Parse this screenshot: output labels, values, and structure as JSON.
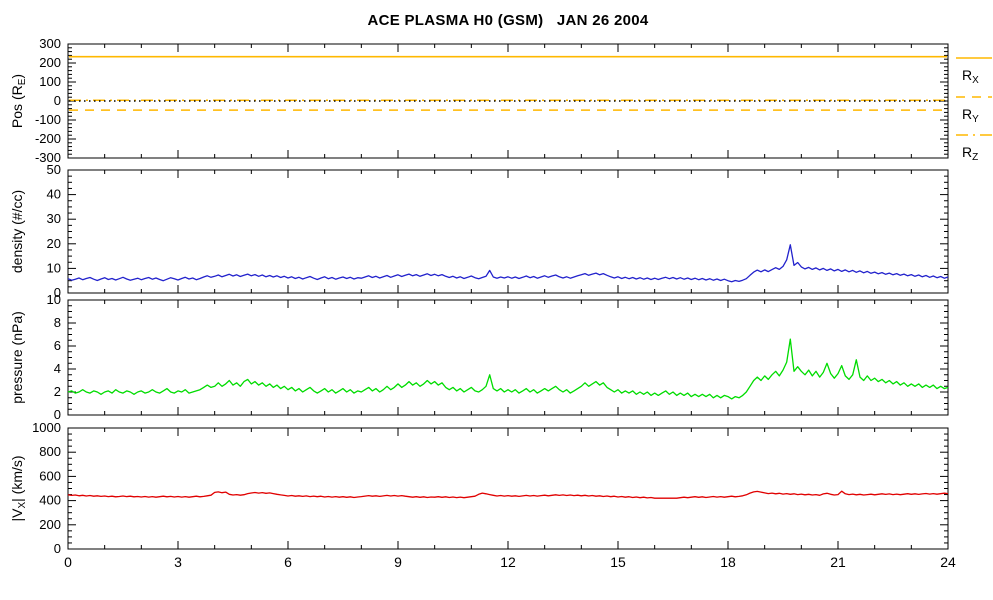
{
  "title": "ACE PLASMA H0 (GSM)   JAN 26 2004",
  "colors": {
    "position_lines": "#FFB800",
    "density_trace": "#2222CC",
    "pressure_trace": "#00DC00",
    "velocity_trace": "#E00000",
    "zero_reference": "#000000",
    "axis": "#000000",
    "background": "#FFFFFF"
  },
  "x_axis": {
    "min": 0,
    "max": 24,
    "major_ticks": [
      0,
      3,
      6,
      9,
      12,
      15,
      18,
      21,
      24
    ],
    "minor_step": 1
  },
  "chart_data": [
    {
      "type": "line",
      "panel": "position",
      "ylabel": {
        "pre": "Pos (R",
        "sub": "E",
        "post": ")"
      },
      "ylim": [
        -300,
        300
      ],
      "yticks": [
        -300,
        -200,
        -100,
        0,
        100,
        200,
        300
      ],
      "minor_step": 20,
      "legend_position": "right-outside",
      "series": [
        {
          "name": "RX",
          "legend": {
            "pre": "R",
            "sub": "X"
          },
          "style": "solid",
          "color": "#FFB800",
          "value": 233
        },
        {
          "name": "RY",
          "legend": {
            "pre": "R",
            "sub": "Y"
          },
          "style": "dashed",
          "color": "#FFB800",
          "value": -48
        },
        {
          "name": "RZ",
          "legend": {
            "pre": "R",
            "sub": "Z"
          },
          "style": "dashdot",
          "color": "#FFB800",
          "value": 4
        },
        {
          "name": "zero-reference",
          "style": "dotted",
          "color": "#000000",
          "value": 0
        }
      ]
    },
    {
      "type": "line",
      "panel": "density",
      "ylabel": {
        "pre": "density (#/cc)"
      },
      "ylim": [
        0,
        50
      ],
      "yticks": [
        0,
        10,
        20,
        30,
        40,
        50
      ],
      "minor_step": 2.5,
      "x_start": 0,
      "x_step": 0.1,
      "series": [
        {
          "name": "proton-density",
          "style": "solid",
          "color": "#2222CC",
          "values": [
            5.8,
            5.2,
            5.6,
            6.1,
            5.4,
            5.9,
            6.3,
            5.6,
            5.1,
            5.7,
            6.2,
            5.5,
            5.9,
            5.3,
            5.8,
            6.4,
            5.7,
            5.2,
            5.6,
            6.0,
            5.4,
            5.9,
            6.3,
            5.6,
            6.1,
            5.5,
            5.0,
            5.6,
            6.2,
            5.8,
            5.3,
            5.9,
            6.4,
            5.7,
            6.1,
            5.4,
            5.9,
            6.5,
            7.0,
            6.4,
            6.8,
            7.3,
            6.6,
            7.1,
            7.6,
            6.9,
            7.4,
            6.7,
            7.2,
            7.7,
            7.0,
            7.5,
            6.8,
            7.3,
            6.6,
            7.1,
            6.5,
            7.0,
            6.3,
            6.8,
            6.1,
            6.6,
            5.9,
            6.4,
            5.7,
            6.2,
            6.7,
            6.0,
            5.5,
            6.1,
            6.6,
            5.8,
            6.3,
            5.6,
            6.1,
            6.5,
            5.9,
            6.4,
            5.7,
            6.2,
            6.0,
            6.5,
            7.0,
            6.3,
            6.8,
            6.1,
            6.6,
            7.1,
            6.4,
            6.9,
            7.4,
            6.7,
            7.2,
            7.7,
            7.0,
            7.5,
            6.8,
            7.3,
            7.8,
            7.1,
            7.6,
            7.0,
            7.5,
            6.8,
            6.3,
            6.8,
            6.1,
            6.6,
            5.9,
            6.4,
            6.9,
            6.2,
            5.8,
            6.3,
            6.8,
            9.2,
            6.5,
            6.0,
            6.5,
            6.1,
            6.6,
            6.0,
            6.5,
            5.9,
            6.4,
            6.9,
            6.2,
            6.7,
            6.0,
            6.5,
            7.0,
            6.4,
            6.9,
            7.3,
            6.6,
            6.1,
            6.6,
            6.0,
            6.5,
            7.0,
            7.4,
            7.9,
            7.2,
            7.7,
            8.1,
            7.4,
            7.9,
            7.2,
            6.6,
            6.1,
            6.6,
            5.9,
            6.4,
            5.8,
            6.3,
            5.7,
            6.2,
            5.6,
            6.1,
            5.5,
            6.0,
            5.5,
            6.0,
            6.4,
            5.8,
            6.3,
            5.7,
            6.2,
            5.6,
            6.1,
            5.5,
            6.0,
            5.4,
            5.9,
            5.3,
            5.8,
            5.2,
            5.7,
            5.1,
            5.6,
            5.0,
            4.6,
            5.1,
            4.7,
            5.2,
            5.8,
            7.2,
            8.5,
            9.3,
            8.6,
            9.4,
            8.7,
            9.5,
            10.3,
            9.6,
            10.8,
            13.5,
            19.6,
            11.2,
            12.4,
            10.6,
            9.8,
            10.4,
            9.6,
            10.2,
            9.4,
            10.0,
            9.2,
            9.8,
            9.0,
            9.6,
            8.8,
            9.4,
            8.6,
            9.2,
            8.4,
            9.0,
            8.2,
            8.8,
            8.0,
            8.5,
            7.8,
            8.3,
            7.6,
            8.1,
            7.4,
            7.9,
            7.2,
            7.7,
            7.0,
            7.5,
            6.8,
            7.3,
            6.6,
            7.1,
            6.4,
            6.9,
            6.2,
            6.7,
            6.0,
            6.5
          ]
        }
      ]
    },
    {
      "type": "line",
      "panel": "pressure",
      "ylabel": {
        "pre": "pressure (nPa)"
      },
      "ylim": [
        0,
        10
      ],
      "yticks": [
        0,
        2,
        4,
        6,
        8,
        10
      ],
      "minor_step": 0.5,
      "x_start": 0,
      "x_step": 0.1,
      "series": [
        {
          "name": "flow-pressure",
          "style": "solid",
          "color": "#00DC00",
          "values": [
            2.0,
            2.1,
            1.9,
            2.0,
            2.2,
            2.0,
            1.9,
            2.1,
            2.0,
            1.8,
            2.0,
            2.1,
            1.9,
            2.2,
            2.0,
            1.9,
            2.1,
            2.0,
            1.8,
            2.0,
            2.1,
            1.9,
            2.0,
            2.2,
            2.0,
            1.9,
            2.1,
            2.3,
            2.0,
            1.9,
            2.1,
            2.0,
            2.2,
            1.9,
            2.0,
            2.1,
            2.2,
            2.4,
            2.6,
            2.4,
            2.5,
            2.8,
            2.5,
            2.7,
            3.0,
            2.6,
            2.8,
            2.5,
            2.9,
            3.1,
            2.7,
            2.9,
            2.6,
            2.8,
            2.5,
            2.7,
            2.4,
            2.6,
            2.3,
            2.5,
            2.2,
            2.4,
            2.1,
            2.3,
            2.0,
            2.2,
            2.4,
            2.1,
            1.9,
            2.1,
            2.3,
            2.0,
            2.2,
            1.9,
            2.1,
            2.3,
            2.0,
            2.2,
            1.9,
            2.1,
            2.0,
            2.2,
            2.4,
            2.1,
            2.3,
            2.0,
            2.2,
            2.5,
            2.2,
            2.4,
            2.7,
            2.4,
            2.6,
            2.9,
            2.6,
            2.8,
            2.5,
            2.7,
            3.0,
            2.7,
            2.9,
            2.6,
            2.8,
            2.4,
            2.2,
            2.4,
            2.1,
            2.3,
            2.0,
            2.2,
            2.4,
            2.1,
            2.0,
            2.2,
            2.5,
            3.5,
            2.3,
            2.1,
            2.3,
            2.0,
            2.2,
            2.0,
            2.2,
            1.9,
            2.1,
            2.3,
            2.0,
            2.2,
            1.9,
            2.1,
            2.3,
            2.1,
            2.3,
            2.5,
            2.2,
            2.0,
            2.2,
            1.9,
            2.1,
            2.3,
            2.5,
            2.8,
            2.5,
            2.7,
            2.9,
            2.6,
            2.8,
            2.4,
            2.2,
            2.0,
            2.2,
            1.9,
            2.1,
            1.9,
            2.1,
            1.8,
            2.0,
            1.8,
            2.0,
            1.7,
            1.9,
            1.7,
            1.9,
            2.1,
            1.8,
            2.0,
            1.7,
            1.9,
            1.7,
            1.9,
            1.6,
            1.8,
            1.6,
            1.8,
            1.6,
            1.8,
            1.5,
            1.7,
            1.5,
            1.7,
            1.6,
            1.4,
            1.6,
            1.5,
            1.7,
            2.0,
            2.5,
            3.0,
            3.3,
            3.0,
            3.4,
            3.1,
            3.5,
            3.8,
            3.4,
            3.9,
            4.6,
            6.6,
            3.8,
            4.2,
            3.8,
            3.5,
            3.9,
            3.4,
            3.8,
            3.3,
            3.7,
            4.5,
            3.6,
            3.2,
            3.6,
            4.3,
            3.4,
            3.1,
            3.5,
            4.8,
            3.3,
            3.0,
            3.4,
            3.0,
            3.2,
            2.9,
            3.1,
            2.8,
            3.0,
            2.7,
            2.9,
            2.6,
            2.8,
            2.5,
            2.7,
            2.5,
            2.7,
            2.4,
            2.6,
            2.4,
            2.6,
            2.3,
            2.5,
            2.3,
            2.4
          ]
        }
      ]
    },
    {
      "type": "line",
      "panel": "velocity",
      "ylabel": {
        "pre": "|V",
        "sub": "X",
        "post": "| (km/s)"
      },
      "ylim": [
        0,
        1000
      ],
      "yticks": [
        0,
        200,
        400,
        600,
        800,
        1000
      ],
      "minor_step": 50,
      "x_start": 0,
      "x_step": 0.1,
      "series": [
        {
          "name": "vx-speed",
          "style": "solid",
          "color": "#E00000",
          "values": [
            448,
            443,
            446,
            440,
            444,
            438,
            442,
            436,
            440,
            435,
            438,
            433,
            436,
            431,
            434,
            438,
            433,
            436,
            431,
            434,
            430,
            434,
            429,
            433,
            428,
            432,
            436,
            431,
            435,
            430,
            434,
            429,
            433,
            428,
            432,
            436,
            431,
            435,
            440,
            445,
            468,
            472,
            465,
            470,
            452,
            446,
            450,
            445,
            449,
            458,
            463,
            467,
            462,
            466,
            460,
            464,
            458,
            452,
            447,
            443,
            438,
            442,
            436,
            440,
            435,
            439,
            433,
            437,
            432,
            436,
            430,
            434,
            429,
            433,
            428,
            432,
            427,
            431,
            426,
            430,
            433,
            437,
            441,
            436,
            440,
            435,
            439,
            443,
            438,
            442,
            437,
            441,
            436,
            432,
            428,
            432,
            427,
            431,
            426,
            430,
            428,
            432,
            427,
            431,
            426,
            430,
            425,
            429,
            424,
            428,
            432,
            436,
            452,
            462,
            456,
            450,
            444,
            438,
            442,
            437,
            441,
            436,
            440,
            435,
            439,
            443,
            438,
            442,
            437,
            441,
            445,
            440,
            444,
            448,
            443,
            447,
            442,
            446,
            441,
            445,
            440,
            444,
            438,
            442,
            436,
            440,
            434,
            438,
            432,
            436,
            430,
            434,
            428,
            432,
            426,
            430,
            424,
            428,
            422,
            426,
            420,
            420,
            420,
            420,
            420,
            420,
            420,
            424,
            428,
            424,
            428,
            432,
            427,
            431,
            426,
            430,
            434,
            429,
            433,
            428,
            432,
            436,
            431,
            435,
            440,
            448,
            462,
            472,
            476,
            470,
            464,
            458,
            462,
            456,
            460,
            454,
            458,
            452,
            456,
            450,
            454,
            448,
            452,
            446,
            450,
            444,
            455,
            460,
            452,
            446,
            450,
            478,
            456,
            450,
            454,
            448,
            452,
            446,
            450,
            453,
            448,
            452,
            456,
            451,
            455,
            450,
            454,
            449,
            453,
            457,
            452,
            456,
            451,
            455,
            459,
            454,
            458,
            453,
            457,
            461,
            458
          ]
        }
      ]
    }
  ]
}
